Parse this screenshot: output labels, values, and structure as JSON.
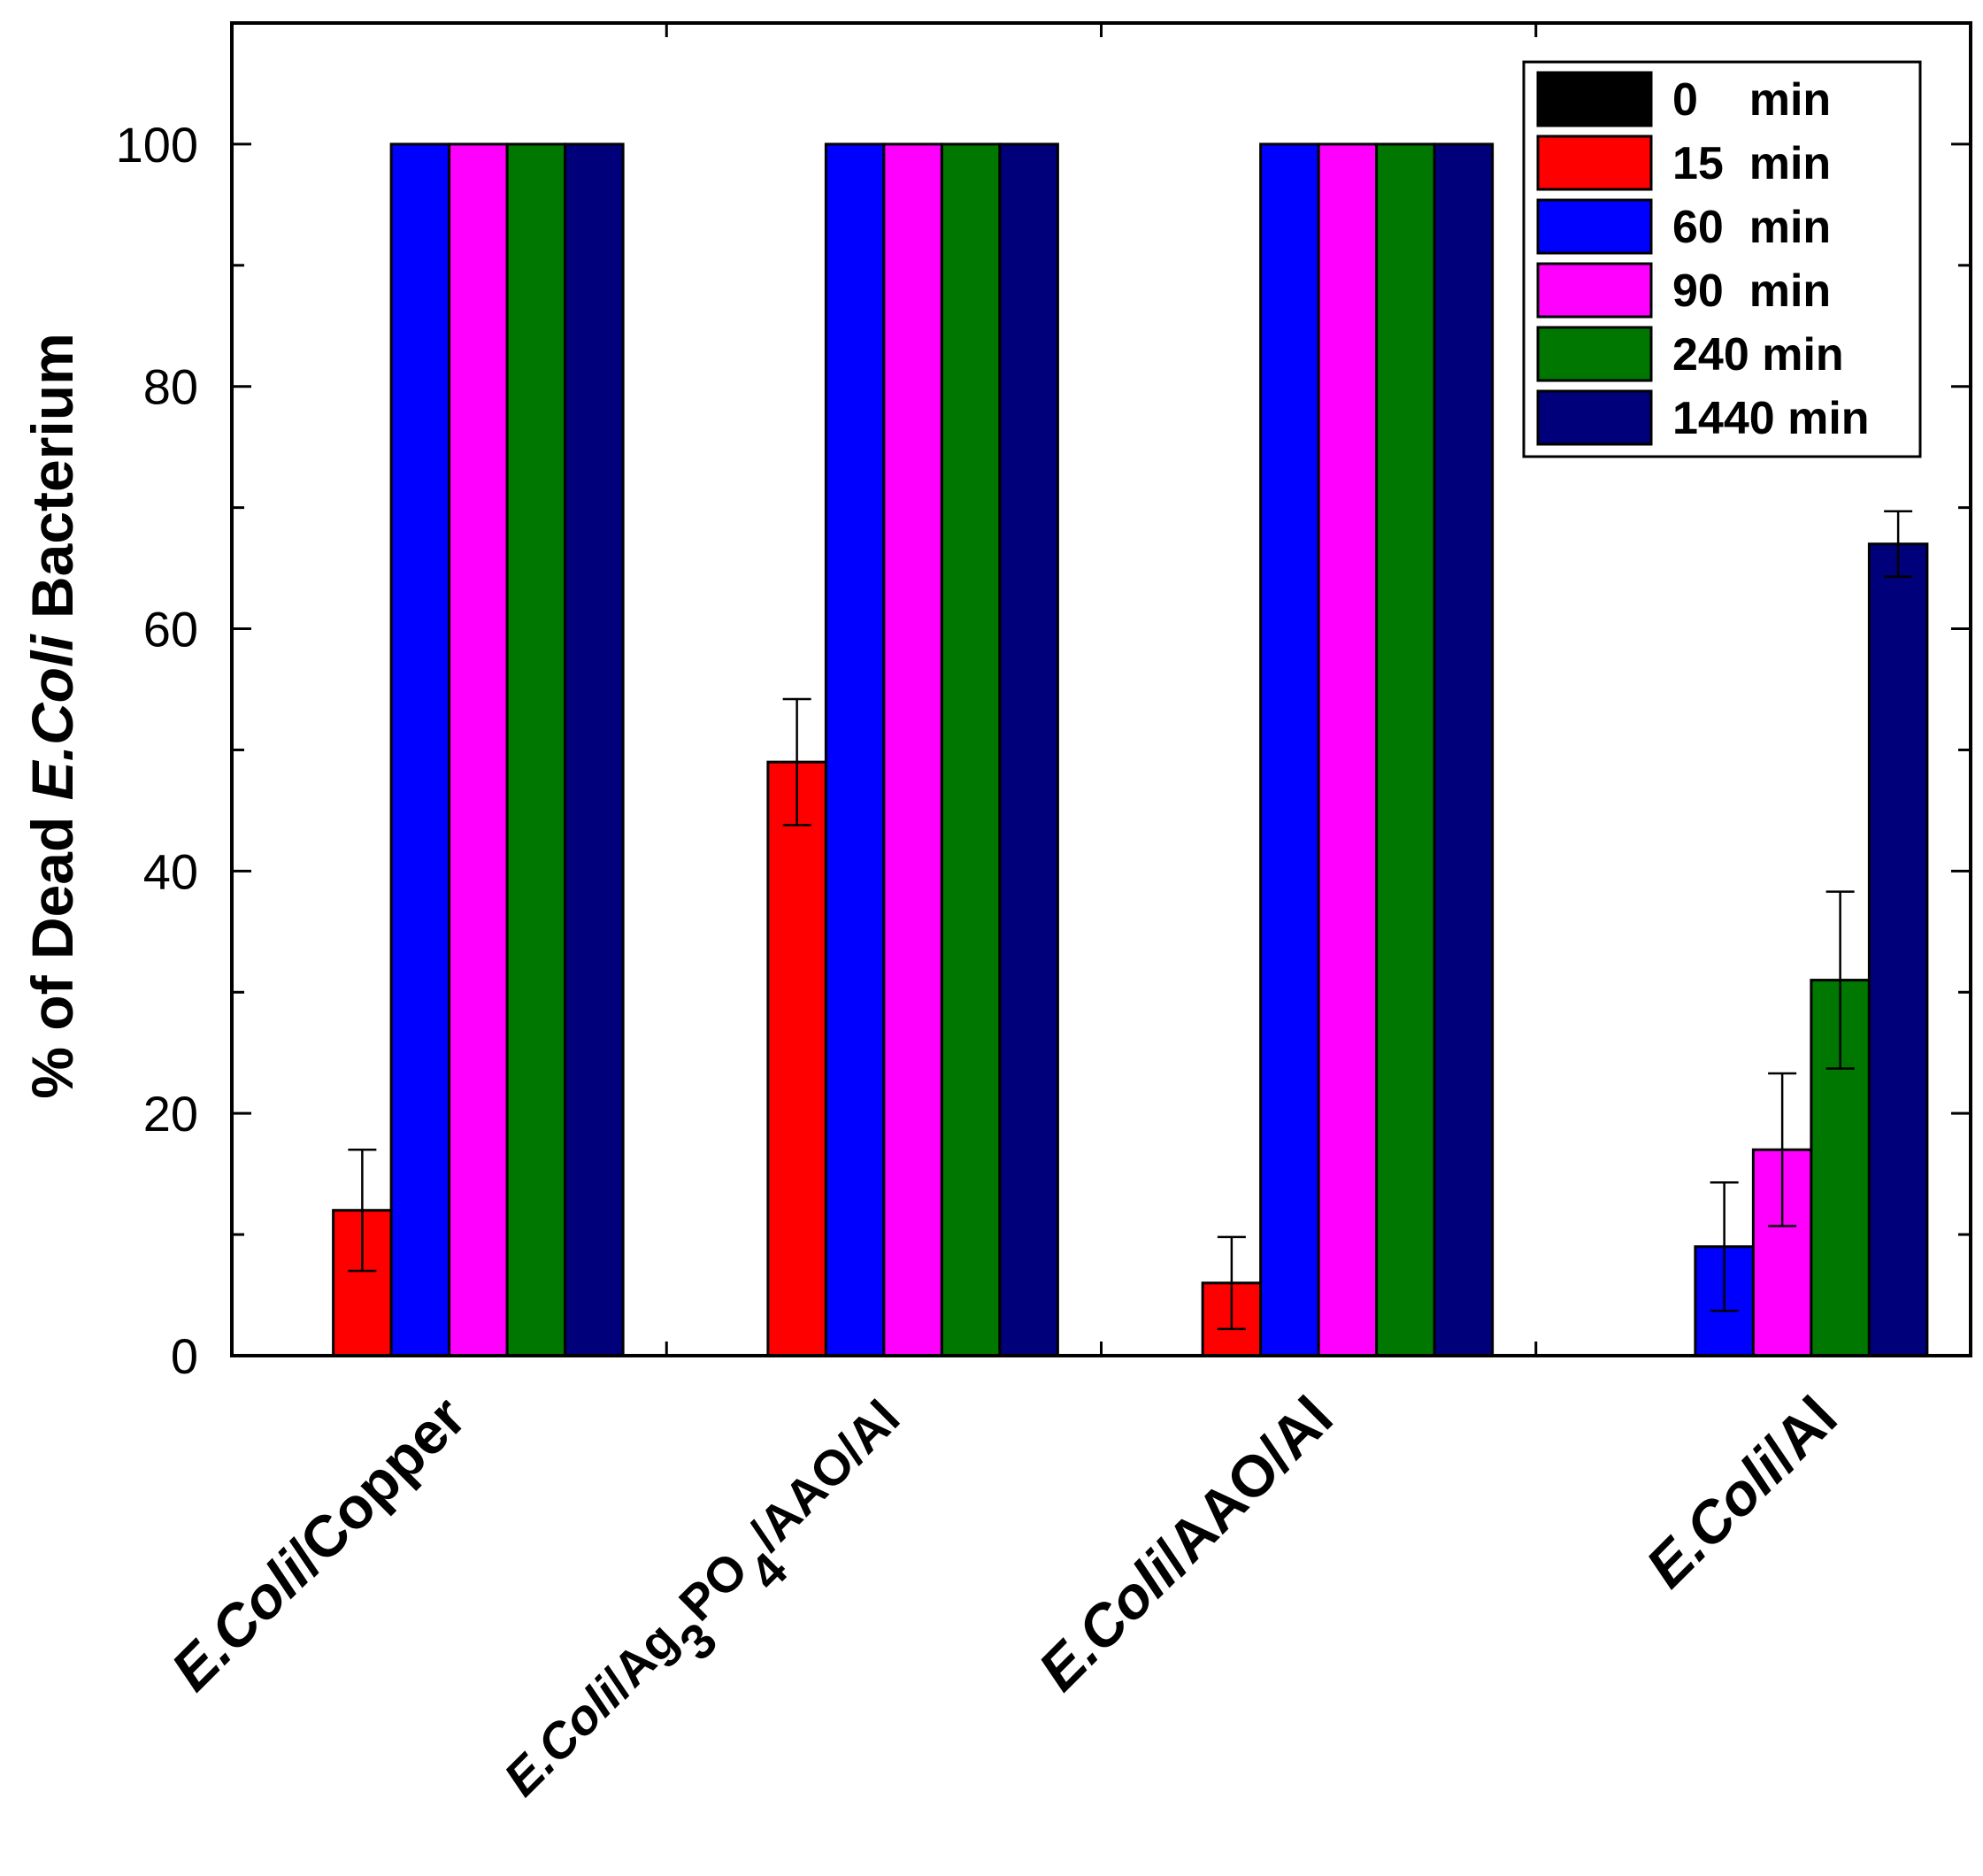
{
  "chart_data": {
    "type": "bar",
    "title": "",
    "xlabel": "",
    "ylabel": {
      "prefix": "% of Dead ",
      "italic": "E.Coli",
      "suffix": " Bacterium"
    },
    "ylim": [
      0,
      110
    ],
    "yticks": [
      0,
      20,
      40,
      60,
      80,
      100
    ],
    "categories": [
      {
        "parts": [
          {
            "t": "E.Coli",
            "i": true
          },
          {
            "t": "/Copper"
          }
        ]
      },
      {
        "parts": [
          {
            "t": "E.Coli",
            "i": true
          },
          {
            "t": "/Ag"
          },
          {
            "t": "3",
            "sub": true
          },
          {
            "t": "PO"
          },
          {
            "t": "4",
            "sub": true
          },
          {
            "t": "/AAO/Al"
          }
        ]
      },
      {
        "parts": [
          {
            "t": "E.Coli",
            "i": true
          },
          {
            "t": "/AAO/Al"
          }
        ]
      },
      {
        "parts": [
          {
            "t": "E.Coli",
            "i": true
          },
          {
            "t": "/Al"
          }
        ]
      }
    ],
    "series": [
      {
        "name": "0    min",
        "color": "#000000",
        "values": [
          0,
          0,
          0,
          0
        ],
        "errors": [
          0,
          0,
          0,
          0
        ]
      },
      {
        "name": "15  min",
        "color": "#ff0000",
        "values": [
          12,
          49,
          6,
          0
        ],
        "errors": [
          5,
          5.2,
          3.8,
          0
        ]
      },
      {
        "name": "60  min",
        "color": "#0000ff",
        "values": [
          100,
          100,
          100,
          9
        ],
        "errors": [
          0,
          0,
          0,
          5.3
        ]
      },
      {
        "name": "90  min",
        "color": "#ff00ff",
        "values": [
          100,
          100,
          100,
          17
        ],
        "errors": [
          0,
          0,
          0,
          6.3
        ]
      },
      {
        "name": "240 min",
        "color": "#007700",
        "values": [
          100,
          100,
          100,
          31
        ],
        "errors": [
          0,
          0,
          0,
          7.3
        ]
      },
      {
        "name": "1440 min",
        "color": "#00007b",
        "values": [
          100,
          100,
          100,
          67
        ],
        "errors": [
          0,
          0,
          0,
          2.7
        ]
      }
    ],
    "legend": "top-right",
    "grid": false
  }
}
